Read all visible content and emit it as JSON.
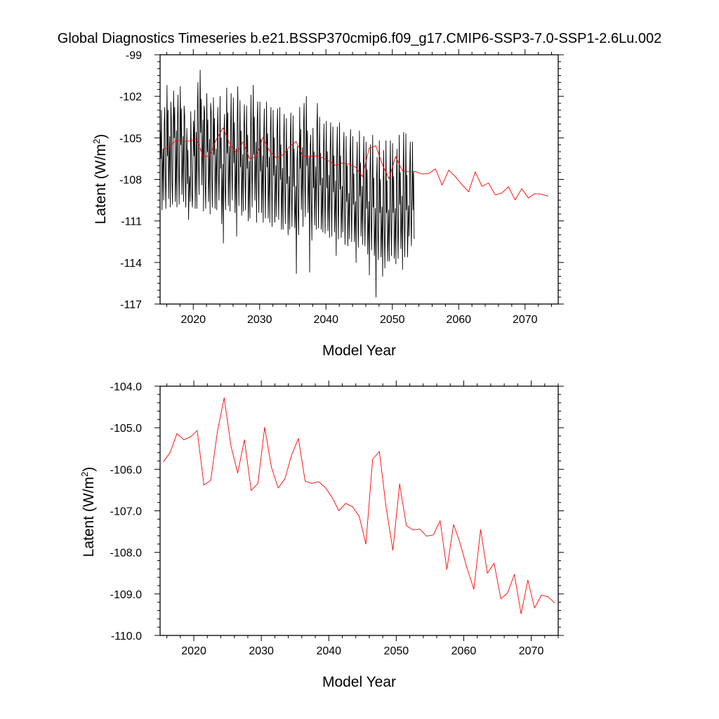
{
  "title": "Global Diagnostics Timeseries b.e21.BSSP370cmip6.f09_g17.CMIP6-SSP3-7.0-SSP1-2.6Lu.002",
  "colors": {
    "monthly": "#000000",
    "annual": "#ff0000",
    "axis": "#000000",
    "background": "#ffffff"
  },
  "chart_data": [
    {
      "type": "line",
      "xlabel": "Model Year",
      "ylabel_main": "Latent (W/m",
      "ylabel_sup": "2",
      "ylabel_close": ")",
      "xlim": [
        2015,
        2075
      ],
      "ylim": [
        -117,
        -99
      ],
      "x_ticks": [
        2020,
        2030,
        2040,
        2050,
        2060,
        2070
      ],
      "x_tick_labels": [
        "2020",
        "2030",
        "2040",
        "2050",
        "2060",
        "2070"
      ],
      "y_ticks": [
        -117,
        -114,
        -111,
        -108,
        -105,
        -102,
        -99
      ],
      "y_tick_labels": [
        "-117",
        "-114",
        "-111",
        "-108",
        "-105",
        "-102",
        "-99"
      ],
      "series": [
        {
          "color": "#000000",
          "x_start": 2015.04,
          "x_step": 0.0833333,
          "values": [
            -104.5,
            -106.5,
            -103.0,
            -110.2,
            -107.2,
            -105.8,
            -109.5,
            -104.0,
            -102.8,
            -107.8,
            -110.1,
            -106.0,
            -101.2,
            -106.3,
            -103.0,
            -109.4,
            -106.5,
            -104.9,
            -110.0,
            -102.4,
            -103.7,
            -108.2,
            -109.8,
            -105.2,
            -101.6,
            -105.0,
            -102.8,
            -109.6,
            -107.9,
            -104.5,
            -110.0,
            -103.7,
            -101.9,
            -107.0,
            -109.8,
            -105.7,
            -101.3,
            -105.5,
            -102.9,
            -109.1,
            -107.2,
            -104.9,
            -109.6,
            -102.7,
            -103.4,
            -107.9,
            -110.0,
            -106.1,
            -104.3,
            -108.3,
            -105.9,
            -110.9,
            -108.6,
            -107.8,
            -109.6,
            -103.1,
            -105.9,
            -109.1,
            -110.0,
            -106.6,
            -103.8,
            -106.3,
            -103.0,
            -110.1,
            -107.5,
            -104.6,
            -110.1,
            -102.9,
            -101.0,
            -106.9,
            -109.1,
            -104.1,
            -100.1,
            -104.6,
            -102.2,
            -108.4,
            -106.2,
            -103.7,
            -110.3,
            -102.7,
            -103.1,
            -108.2,
            -110.1,
            -106.4,
            -101.8,
            -106.0,
            -103.7,
            -109.6,
            -107.9,
            -105.1,
            -110.5,
            -102.5,
            -103.1,
            -107.8,
            -110.0,
            -106.5,
            -102.1,
            -106.2,
            -103.6,
            -110.1,
            -107.5,
            -105.8,
            -110.2,
            -104.6,
            -102.8,
            -107.2,
            -109.5,
            -106.4,
            -102.0,
            -107.2,
            -105.0,
            -111.2,
            -109.0,
            -106.9,
            -112.6,
            -104.7,
            -103.3,
            -108.5,
            -110.2,
            -106.9,
            -101.4,
            -106.1,
            -103.2,
            -109.9,
            -107.7,
            -105.6,
            -110.3,
            -104.6,
            -101.8,
            -106.8,
            -109.5,
            -105.5,
            -102.1,
            -106.8,
            -103.9,
            -110.4,
            -108.2,
            -105.8,
            -112.1,
            -103.9,
            -101.3,
            -106.7,
            -109.9,
            -106.2,
            -102.3,
            -107.1,
            -104.5,
            -110.6,
            -108.2,
            -106.2,
            -110.3,
            -104.4,
            -102.6,
            -107.5,
            -110.2,
            -106.3,
            -102.7,
            -107.2,
            -104.8,
            -111.0,
            -108.9,
            -106.7,
            -110.8,
            -104.9,
            -101.9,
            -106.4,
            -110.0,
            -105.9,
            -101.2,
            -106.2,
            -103.5,
            -109.5,
            -107.3,
            -105.3,
            -111.1,
            -104.0,
            -102.4,
            -107.7,
            -110.4,
            -106.6,
            -102.4,
            -107.4,
            -105.1,
            -110.4,
            -108.2,
            -106.3,
            -111.1,
            -104.8,
            -102.9,
            -107.6,
            -110.8,
            -106.7,
            -102.4,
            -107.1,
            -104.7,
            -110.8,
            -108.7,
            -106.4,
            -111.1,
            -104.5,
            -102.8,
            -108.0,
            -111.4,
            -107.0,
            -103.0,
            -107.7,
            -105.0,
            -111.1,
            -109.1,
            -107.0,
            -110.7,
            -104.5,
            -102.9,
            -108.1,
            -110.9,
            -107.2,
            -102.8,
            -108.0,
            -105.5,
            -111.6,
            -109.2,
            -107.2,
            -111.6,
            -105.0,
            -103.3,
            -108.4,
            -111.2,
            -107.5,
            -103.6,
            -108.3,
            -105.9,
            -112.0,
            -110.1,
            -107.8,
            -111.6,
            -105.0,
            -103.2,
            -108.7,
            -111.4,
            -107.6,
            -103.4,
            -108.5,
            -105.8,
            -111.5,
            -110.3,
            -108.5,
            -114.8,
            -106.7,
            -105.6,
            -110.0,
            -112.0,
            -108.4,
            -102.8,
            -107.2,
            -104.4,
            -110.2,
            -108.3,
            -105.7,
            -111.4,
            -104.2,
            -102.5,
            -107.5,
            -110.7,
            -106.4,
            -102.0,
            -107.0,
            -104.5,
            -110.4,
            -108.6,
            -106.4,
            -114.7,
            -105.6,
            -104.8,
            -109.6,
            -112.4,
            -108.2,
            -104.3,
            -108.6,
            -106.0,
            -111.3,
            -108.9,
            -107.1,
            -111.6,
            -104.4,
            -102.5,
            -108.2,
            -111.5,
            -107.2,
            -103.5,
            -108.4,
            -106.1,
            -111.6,
            -110.1,
            -107.9,
            -111.8,
            -105.8,
            -104.0,
            -108.9,
            -111.9,
            -107.8,
            -103.8,
            -108.6,
            -106.0,
            -111.7,
            -109.7,
            -107.7,
            -112.2,
            -105.9,
            -103.9,
            -108.8,
            -112.1,
            -107.9,
            -104.2,
            -108.9,
            -106.3,
            -111.8,
            -110.1,
            -108.1,
            -113.5,
            -106.4,
            -104.2,
            -109.1,
            -112.3,
            -108.1,
            -103.9,
            -108.7,
            -106.3,
            -112.2,
            -110.3,
            -108.5,
            -111.8,
            -106.0,
            -104.6,
            -109.7,
            -112.7,
            -109.1,
            -104.9,
            -109.6,
            -107.0,
            -112.8,
            -110.8,
            -109.0,
            -112.3,
            -106.4,
            -104.4,
            -109.5,
            -112.5,
            -108.9,
            -104.9,
            -109.8,
            -107.6,
            -112.5,
            -111.0,
            -109.6,
            -114.0,
            -107.2,
            -105.3,
            -110.1,
            -112.9,
            -109.6,
            -104.5,
            -109.2,
            -106.8,
            -112.1,
            -110.6,
            -108.5,
            -112.7,
            -106.9,
            -104.9,
            -110.0,
            -112.8,
            -109.5,
            -105.3,
            -110.1,
            -107.3,
            -113.4,
            -111.6,
            -109.6,
            -114.9,
            -107.6,
            -105.5,
            -110.2,
            -113.1,
            -109.9,
            -104.8,
            -110.0,
            -107.9,
            -113.5,
            -112.0,
            -110.1,
            -116.5,
            -108.0,
            -106.4,
            -111.2,
            -113.8,
            -110.4,
            -105.2,
            -110.4,
            -108.0,
            -113.6,
            -111.9,
            -110.0,
            -115.0,
            -108.4,
            -105.9,
            -111.6,
            -114.4,
            -110.7,
            -105.2,
            -110.4,
            -108.1,
            -113.9,
            -112.2,
            -110.2,
            -113.9,
            -107.9,
            -105.2,
            -110.8,
            -113.5,
            -109.8,
            -105.4,
            -110.4,
            -107.8,
            -113.7,
            -112.0,
            -110.1,
            -114.1,
            -107.9,
            -105.8,
            -111.0,
            -113.7,
            -110.3,
            -104.8,
            -109.8,
            -107.5,
            -113.0,
            -111.3,
            -109.2,
            -114.5,
            -107.9,
            -104.6,
            -110.5,
            -113.6,
            -109.8,
            -104.7,
            -110.2,
            -107.7,
            -113.6,
            -111.6,
            -109.9,
            -112.1,
            -107.2,
            -105.3,
            -110.3,
            -112.8,
            -109.4,
            -105.3,
            -110.2,
            -107.5,
            -112.3
          ]
        },
        {
          "color": "#ff0000",
          "x_start": 2015.5,
          "x_step": 1,
          "values": [
            -105.82,
            -105.59,
            -105.14,
            -105.29,
            -105.22,
            -105.07,
            -106.38,
            -106.27,
            -105.09,
            -104.28,
            -105.44,
            -106.09,
            -105.29,
            -106.51,
            -106.34,
            -104.99,
            -105.95,
            -106.45,
            -106.23,
            -105.65,
            -105.26,
            -106.29,
            -106.34,
            -106.3,
            -106.44,
            -106.68,
            -107.0,
            -106.82,
            -106.9,
            -107.13,
            -107.8,
            -105.76,
            -105.57,
            -106.92,
            -107.95,
            -106.35,
            -107.36,
            -107.46,
            -107.44,
            -107.61,
            -107.58,
            -107.24,
            -108.41,
            -107.33,
            -107.8,
            -108.39,
            -108.89,
            -107.45,
            -108.5,
            -108.26,
            -109.12,
            -108.98,
            -108.53,
            -109.48,
            -108.67,
            -109.34,
            -109.03,
            -109.07,
            -109.22
          ]
        }
      ]
    },
    {
      "type": "line",
      "xlabel": "Model Year",
      "ylabel_main": "Latent (W/m",
      "ylabel_sup": "2",
      "ylabel_close": ")",
      "xlim": [
        2015,
        2074
      ],
      "ylim": [
        -110,
        -104
      ],
      "x_ticks": [
        2020,
        2030,
        2040,
        2050,
        2060,
        2070
      ],
      "x_tick_labels": [
        "2020",
        "2030",
        "2040",
        "2050",
        "2060",
        "2070"
      ],
      "y_ticks": [
        -110,
        -109,
        -108,
        -107,
        -106,
        -105,
        -104
      ],
      "y_tick_labels": [
        "-110.0",
        "-109.0",
        "-108.0",
        "-107.0",
        "-106.0",
        "-105.0",
        "-104.0"
      ],
      "series": [
        {
          "color": "#ff0000",
          "x_start": 2015.5,
          "x_step": 1,
          "values": [
            -105.82,
            -105.59,
            -105.14,
            -105.29,
            -105.22,
            -105.07,
            -106.38,
            -106.27,
            -105.09,
            -104.28,
            -105.44,
            -106.09,
            -105.29,
            -106.51,
            -106.34,
            -104.99,
            -105.95,
            -106.45,
            -106.23,
            -105.65,
            -105.26,
            -106.29,
            -106.34,
            -106.3,
            -106.44,
            -106.68,
            -107.0,
            -106.82,
            -106.9,
            -107.13,
            -107.8,
            -105.76,
            -105.57,
            -106.92,
            -107.95,
            -106.35,
            -107.36,
            -107.46,
            -107.44,
            -107.61,
            -107.58,
            -107.24,
            -108.41,
            -107.33,
            -107.8,
            -108.39,
            -108.89,
            -107.45,
            -108.5,
            -108.26,
            -109.12,
            -108.98,
            -108.53,
            -109.48,
            -108.67,
            -109.34,
            -109.03,
            -109.07,
            -109.22
          ]
        }
      ]
    }
  ]
}
